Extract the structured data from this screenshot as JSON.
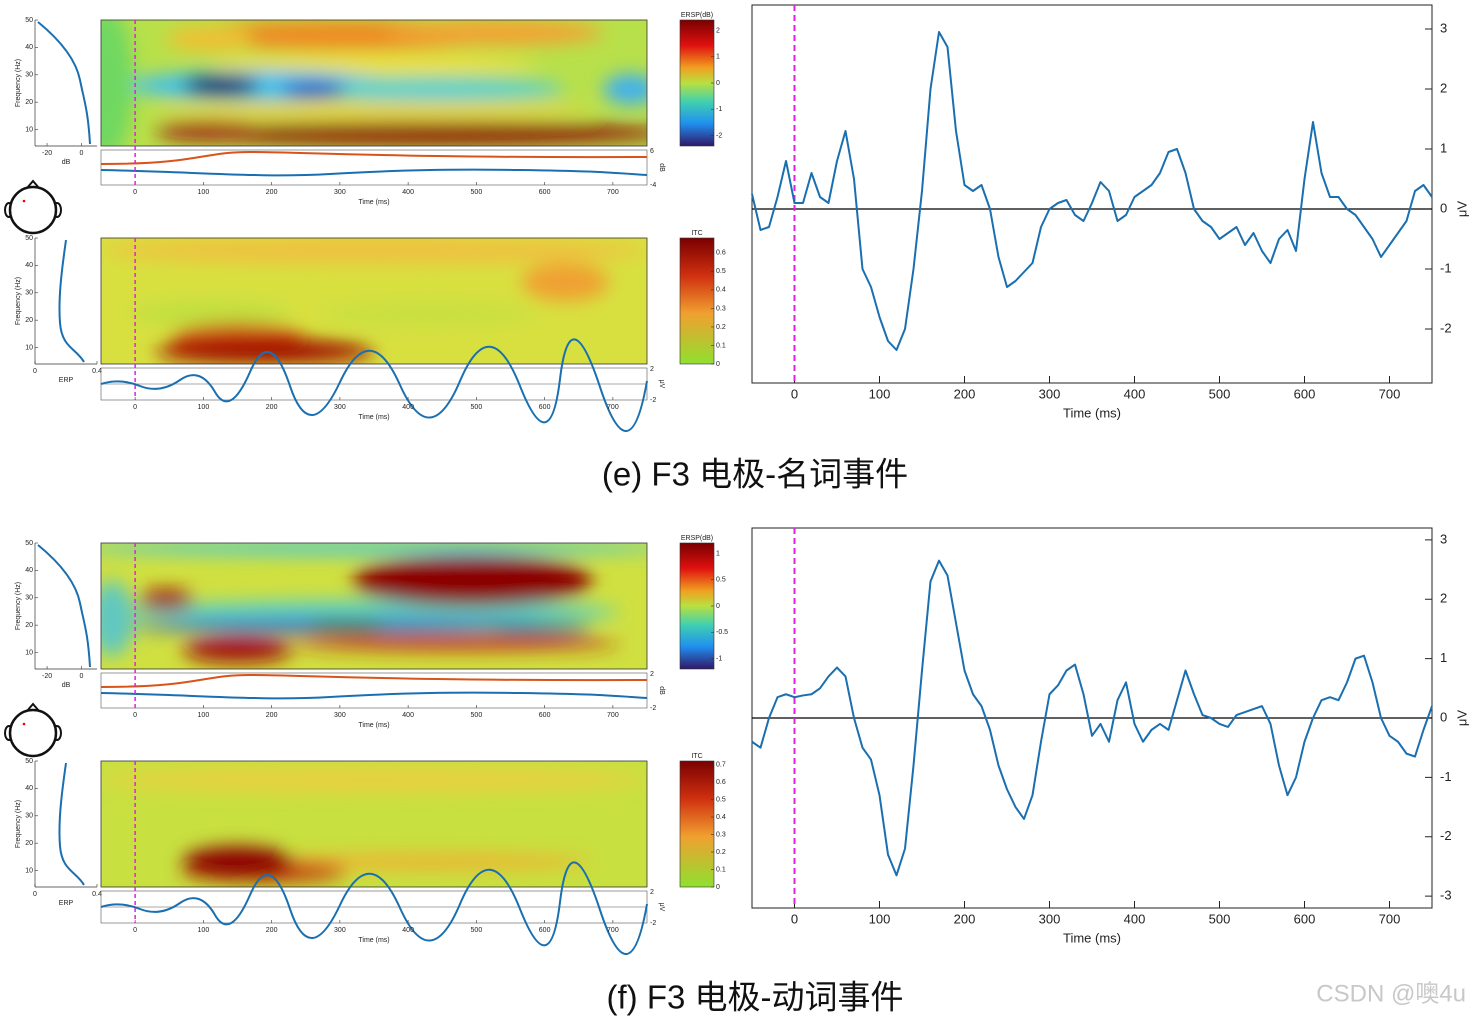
{
  "chart_data": [
    {
      "type": "line",
      "caption": "(e) F3 电极-名词事件",
      "xlabel": "Time (ms)",
      "ylabel": "μV",
      "color": "#1a6fb0",
      "event_x": 0,
      "event_color": "#e020e0",
      "x": [
        -50,
        -40,
        -30,
        -20,
        -10,
        0,
        10,
        20,
        30,
        40,
        50,
        60,
        70,
        80,
        90,
        100,
        110,
        120,
        130,
        140,
        150,
        160,
        170,
        180,
        190,
        200,
        210,
        220,
        230,
        240,
        250,
        260,
        270,
        280,
        290,
        300,
        310,
        320,
        330,
        340,
        350,
        360,
        370,
        380,
        390,
        400,
        410,
        420,
        430,
        440,
        450,
        460,
        470,
        480,
        490,
        500,
        510,
        520,
        530,
        540,
        550,
        560,
        570,
        580,
        590,
        600,
        610,
        620,
        630,
        640,
        650,
        660,
        670,
        680,
        690,
        700,
        710,
        720,
        730,
        740,
        750
      ],
      "values": [
        0.25,
        -0.35,
        -0.3,
        0.2,
        0.8,
        0.1,
        0.1,
        0.6,
        0.2,
        0.1,
        0.8,
        1.3,
        0.5,
        -1.0,
        -1.3,
        -1.8,
        -2.2,
        -2.35,
        -2.0,
        -1.0,
        0.3,
        2.0,
        2.95,
        2.7,
        1.3,
        0.4,
        0.3,
        0.4,
        0.0,
        -0.8,
        -1.3,
        -1.2,
        -1.05,
        -0.9,
        -0.3,
        0.0,
        0.1,
        0.15,
        -0.1,
        -0.2,
        0.1,
        0.45,
        0.3,
        -0.2,
        -0.1,
        0.2,
        0.3,
        0.4,
        0.6,
        0.95,
        1.0,
        0.6,
        0.0,
        -0.2,
        -0.3,
        -0.5,
        -0.4,
        -0.3,
        -0.6,
        -0.4,
        -0.7,
        -0.9,
        -0.5,
        -0.35,
        -0.7,
        0.5,
        1.45,
        0.6,
        0.2,
        0.2,
        0.0,
        -0.1,
        -0.3,
        -0.5,
        -0.8,
        -0.6,
        -0.4,
        -0.2,
        0.3,
        0.4,
        0.2
      ],
      "xlim": [
        -50,
        750
      ],
      "ylim": [
        -2.9,
        3.4
      ],
      "xticks": [
        0,
        100,
        200,
        300,
        400,
        500,
        600,
        700
      ],
      "yticks": [
        -2,
        -1,
        0,
        1,
        2,
        3
      ]
    },
    {
      "type": "line",
      "caption": "(f) F3 电极-动词事件",
      "xlabel": "Time (ms)",
      "ylabel": "μV",
      "color": "#1a6fb0",
      "event_x": 0,
      "event_color": "#e020e0",
      "x": [
        -50,
        -40,
        -30,
        -20,
        -10,
        0,
        10,
        20,
        30,
        40,
        50,
        60,
        70,
        80,
        90,
        100,
        110,
        120,
        130,
        140,
        150,
        160,
        170,
        180,
        190,
        200,
        210,
        220,
        230,
        240,
        250,
        260,
        270,
        280,
        290,
        300,
        310,
        320,
        330,
        340,
        350,
        360,
        370,
        380,
        390,
        400,
        410,
        420,
        430,
        440,
        450,
        460,
        470,
        480,
        490,
        500,
        510,
        520,
        530,
        540,
        550,
        560,
        570,
        580,
        590,
        600,
        610,
        620,
        630,
        640,
        650,
        660,
        670,
        680,
        690,
        700,
        710,
        720,
        730,
        740,
        750
      ],
      "values": [
        -0.4,
        -0.5,
        0.0,
        0.35,
        0.4,
        0.35,
        0.38,
        0.4,
        0.5,
        0.7,
        0.85,
        0.7,
        0.0,
        -0.5,
        -0.7,
        -1.3,
        -2.3,
        -2.65,
        -2.2,
        -0.8,
        0.8,
        2.3,
        2.65,
        2.4,
        1.6,
        0.8,
        0.4,
        0.2,
        -0.2,
        -0.8,
        -1.2,
        -1.5,
        -1.7,
        -1.3,
        -0.4,
        0.4,
        0.55,
        0.8,
        0.9,
        0.4,
        -0.3,
        -0.1,
        -0.4,
        0.3,
        0.6,
        -0.1,
        -0.4,
        -0.2,
        -0.1,
        -0.2,
        0.3,
        0.8,
        0.4,
        0.05,
        0.0,
        -0.1,
        -0.15,
        0.05,
        0.1,
        0.15,
        0.2,
        -0.1,
        -0.8,
        -1.3,
        -1.0,
        -0.4,
        0.0,
        0.3,
        0.35,
        0.3,
        0.6,
        1.0,
        1.05,
        0.6,
        0.0,
        -0.3,
        -0.4,
        -0.6,
        -0.65,
        -0.2,
        0.2
      ],
      "xlim": [
        -50,
        750
      ],
      "ylim": [
        -3.2,
        3.2
      ],
      "xticks": [
        0,
        100,
        200,
        300,
        400,
        500,
        600,
        700
      ],
      "yticks": [
        -3,
        -2,
        -1,
        0,
        1,
        2,
        3
      ]
    }
  ],
  "tf_panels": [
    {
      "xlim": [
        -50,
        750
      ],
      "xticks": [
        0,
        100,
        200,
        300,
        400,
        500,
        600,
        700
      ],
      "xlabel": "Time (ms)",
      "event_x": 0,
      "ersp": {
        "ylabel": "Frequency (Hz)",
        "ylim": [
          4,
          50
        ],
        "yticks": [
          10,
          20,
          30,
          40,
          50
        ],
        "side_xlim": [
          -27,
          9
        ],
        "side_xticks": [
          -20,
          0
        ],
        "side_xlabel": "dB",
        "colorbar_label": "ERSP(dB)",
        "colorbar_lim": [
          -2.4,
          2.4
        ],
        "colorbar_ticks": [
          -2,
          -1,
          0,
          1,
          2
        ],
        "trace_ticks": [
          -4,
          6
        ],
        "trace_label": "dB"
      },
      "itc": {
        "ylabel": "Frequency (Hz)",
        "ylim": [
          4,
          50
        ],
        "yticks": [
          10,
          20,
          30,
          40,
          50
        ],
        "side_xlim": [
          0,
          0.4
        ],
        "side_xticks": [
          0,
          0.4
        ],
        "side_xlabel": "ERP",
        "colorbar_label": "ITC",
        "colorbar_lim": [
          0,
          0.68
        ],
        "colorbar_ticks": [
          0,
          0.1,
          0.2,
          0.3,
          0.4,
          0.5,
          0.6
        ],
        "trace_ticks": [
          -2,
          2
        ],
        "trace_label": "μV"
      }
    },
    {
      "xlim": [
        -50,
        750
      ],
      "xticks": [
        0,
        100,
        200,
        300,
        400,
        500,
        600,
        700
      ],
      "xlabel": "Time (ms)",
      "event_x": 0,
      "ersp": {
        "ylabel": "Frequency (Hz)",
        "ylim": [
          4,
          50
        ],
        "yticks": [
          10,
          20,
          30,
          40,
          50
        ],
        "side_xlim": [
          -27,
          9
        ],
        "side_xticks": [
          -20,
          0
        ],
        "side_xlabel": "dB",
        "colorbar_label": "ERSP(dB)",
        "colorbar_lim": [
          -1.2,
          1.2
        ],
        "colorbar_ticks": [
          -1,
          -0.5,
          0,
          0.5,
          1
        ],
        "trace_ticks": [
          -2,
          2
        ],
        "trace_label": "dB"
      },
      "itc": {
        "ylabel": "Frequency (Hz)",
        "ylim": [
          4,
          50
        ],
        "yticks": [
          10,
          20,
          30,
          40,
          50
        ],
        "side_xlim": [
          0,
          0.4
        ],
        "side_xticks": [
          0,
          0.4
        ],
        "side_xlabel": "ERP",
        "colorbar_label": "ITC",
        "colorbar_lim": [
          0,
          0.72
        ],
        "colorbar_ticks": [
          0,
          0.1,
          0.2,
          0.3,
          0.4,
          0.5,
          0.6,
          0.7
        ],
        "trace_ticks": [
          -2,
          2
        ],
        "trace_label": "μV"
      }
    }
  ],
  "watermark": "CSDN @噢4u"
}
